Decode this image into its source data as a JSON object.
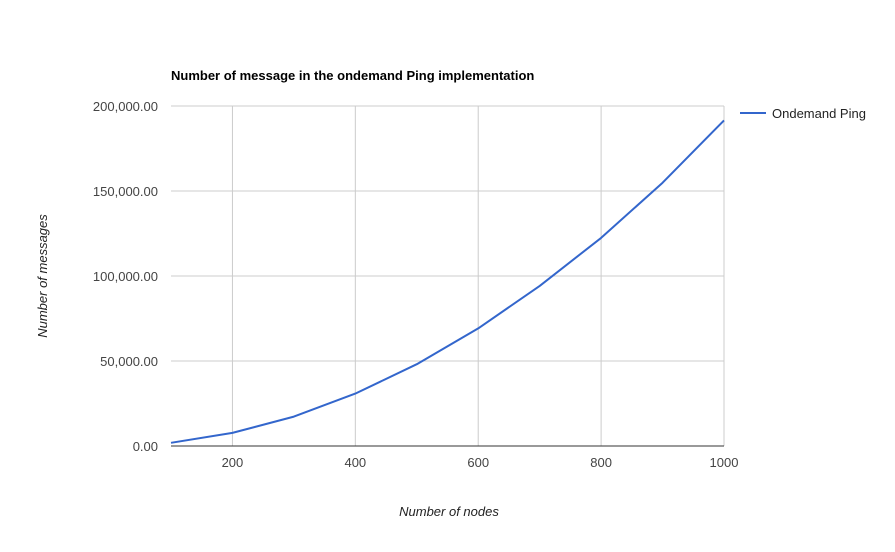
{
  "chart_data": {
    "type": "line",
    "title": "Number of message in the ondemand Ping implementation",
    "xlabel": "Number of nodes",
    "ylabel": "Number of messages",
    "xlim": [
      100,
      1000
    ],
    "ylim": [
      0,
      200000
    ],
    "x_ticks": [
      200,
      400,
      600,
      800,
      1000
    ],
    "x_tick_labels": [
      "200",
      "400",
      "600",
      "800",
      "1000"
    ],
    "y_ticks": [
      0,
      50000,
      100000,
      150000,
      200000
    ],
    "y_tick_labels": [
      "0.00",
      "50,000.00",
      "100,000.00",
      "150,000.00",
      "200,000.00"
    ],
    "x_gridlines": [
      200,
      400,
      600,
      800,
      1000
    ],
    "grid": true,
    "legend_position": "right",
    "series": [
      {
        "name": "Ondemand Ping",
        "color": "#3366cc",
        "x": [
          100,
          200,
          300,
          400,
          500,
          600,
          700,
          800,
          900,
          1000
        ],
        "values": [
          1900,
          7700,
          17300,
          30800,
          48100,
          69200,
          94200,
          122400,
          154900,
          191500
        ]
      }
    ]
  }
}
